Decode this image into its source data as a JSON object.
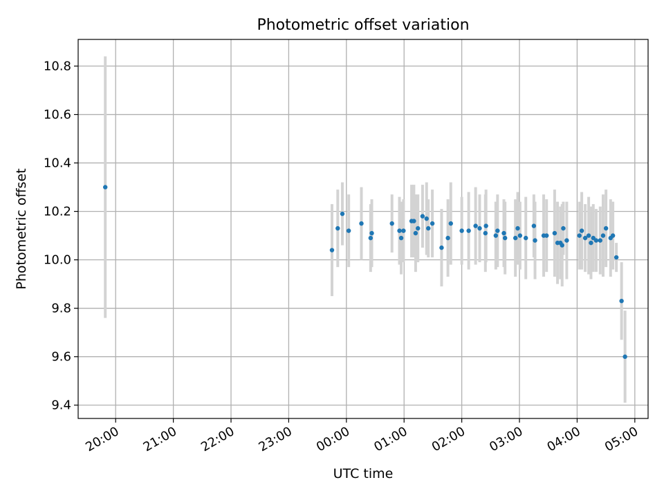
{
  "chart_data": {
    "type": "scatter",
    "title": "Photometric offset variation",
    "xlabel": "UTC time",
    "ylabel": "Photometric offset",
    "x_unit": "hours since 00:00 UTC",
    "xlim": [
      -4.65,
      5.23
    ],
    "ylim": [
      9.345,
      10.91
    ],
    "xticks": [
      -4,
      -3,
      -2,
      -1,
      0,
      1,
      2,
      3,
      4,
      5
    ],
    "xtick_labels": [
      "20:00",
      "21:00",
      "22:00",
      "23:00",
      "00:00",
      "01:00",
      "02:00",
      "03:00",
      "04:00",
      "05:00"
    ],
    "yticks": [
      9.4,
      9.6,
      9.8,
      10.0,
      10.2,
      10.4,
      10.6,
      10.8
    ],
    "ytick_labels": [
      "9.4",
      "9.6",
      "9.8",
      "10.0",
      "10.2",
      "10.4",
      "10.6",
      "10.8"
    ],
    "grid": true,
    "colors": {
      "point": "#1f77b4",
      "errorbar": "#d3d3d3",
      "grid": "#b0b0b0",
      "axes": "#000000"
    },
    "series": [
      {
        "name": "offset",
        "x": [
          -4.18,
          -0.25,
          -0.15,
          -0.07,
          0.04,
          0.26,
          0.42,
          0.44,
          0.79,
          0.92,
          0.95,
          0.99,
          1.13,
          1.17,
          1.2,
          1.24,
          1.32,
          1.39,
          1.42,
          1.49,
          1.65,
          1.76,
          1.81,
          2.0,
          2.12,
          2.24,
          2.31,
          2.41,
          2.42,
          2.59,
          2.62,
          2.73,
          2.75,
          2.93,
          2.97,
          3.01,
          3.11,
          3.25,
          3.27,
          3.42,
          3.47,
          3.61,
          3.66,
          3.71,
          3.74,
          3.76,
          3.82,
          4.04,
          4.08,
          4.14,
          4.2,
          4.24,
          4.28,
          4.33,
          4.4,
          4.45,
          4.5,
          4.58,
          4.62,
          4.68,
          4.77,
          4.83
        ],
        "y": [
          10.3,
          10.04,
          10.13,
          10.19,
          10.12,
          10.15,
          10.09,
          10.11,
          10.15,
          10.12,
          10.09,
          10.12,
          10.16,
          10.16,
          10.11,
          10.13,
          10.18,
          10.17,
          10.13,
          10.15,
          10.05,
          10.09,
          10.15,
          10.12,
          10.12,
          10.14,
          10.13,
          10.11,
          10.14,
          10.1,
          10.12,
          10.11,
          10.09,
          10.09,
          10.13,
          10.1,
          10.09,
          10.14,
          10.08,
          10.1,
          10.1,
          10.11,
          10.07,
          10.07,
          10.06,
          10.13,
          10.08,
          10.1,
          10.12,
          10.09,
          10.1,
          10.07,
          10.09,
          10.08,
          10.08,
          10.1,
          10.13,
          10.09,
          10.1,
          10.01,
          9.83,
          9.6
        ],
        "err": [
          0.54,
          0.19,
          0.16,
          0.13,
          0.15,
          0.15,
          0.14,
          0.14,
          0.12,
          0.14,
          0.15,
          0.13,
          0.15,
          0.15,
          0.16,
          0.14,
          0.13,
          0.15,
          0.12,
          0.14,
          0.16,
          0.16,
          0.17,
          0.14,
          0.16,
          0.16,
          0.14,
          0.16,
          0.15,
          0.14,
          0.15,
          0.14,
          0.15,
          0.16,
          0.15,
          0.14,
          0.17,
          0.13,
          0.16,
          0.17,
          0.15,
          0.18,
          0.17,
          0.15,
          0.17,
          0.11,
          0.16,
          0.14,
          0.16,
          0.14,
          0.16,
          0.15,
          0.14,
          0.13,
          0.14,
          0.17,
          0.16,
          0.16,
          0.14,
          0.06,
          0.16,
          0.19
        ]
      }
    ]
  }
}
